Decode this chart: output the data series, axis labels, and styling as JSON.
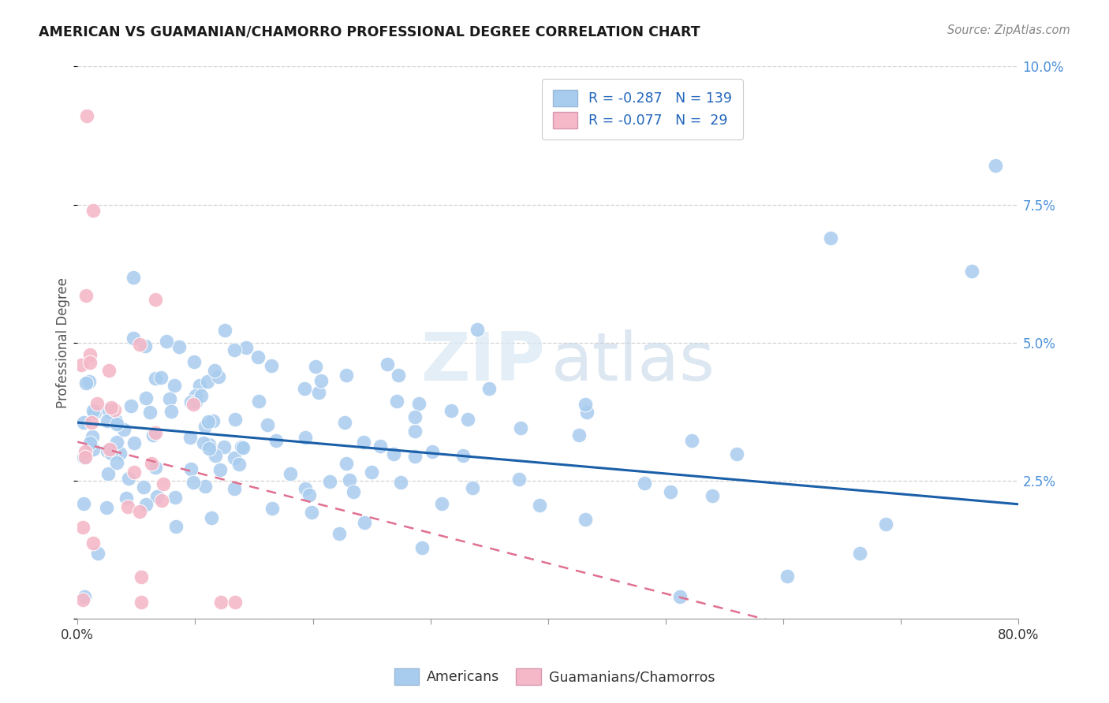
{
  "title": "AMERICAN VS GUAMANIAN/CHAMORRO PROFESSIONAL DEGREE CORRELATION CHART",
  "source": "Source: ZipAtlas.com",
  "ylabel": "Professional Degree",
  "watermark_zip": "ZIP",
  "watermark_atlas": "atlas",
  "blue_R": -0.287,
  "blue_N": 139,
  "pink_R": -0.077,
  "pink_N": 29,
  "xlim": [
    0.0,
    0.8
  ],
  "ylim": [
    0.0,
    0.1
  ],
  "blue_color": "#a8ccee",
  "pink_color": "#f4b8c8",
  "blue_line_color": "#1a5fa8",
  "pink_line_color": "#e07090",
  "background_color": "#ffffff",
  "grid_color": "#c8c8c8",
  "blue_intercept": 0.0355,
  "blue_slope": -0.0185,
  "pink_intercept": 0.032,
  "pink_slope": -0.055,
  "legend_label_blue": "Americans",
  "legend_label_pink": "Guamanians/Chamorros"
}
